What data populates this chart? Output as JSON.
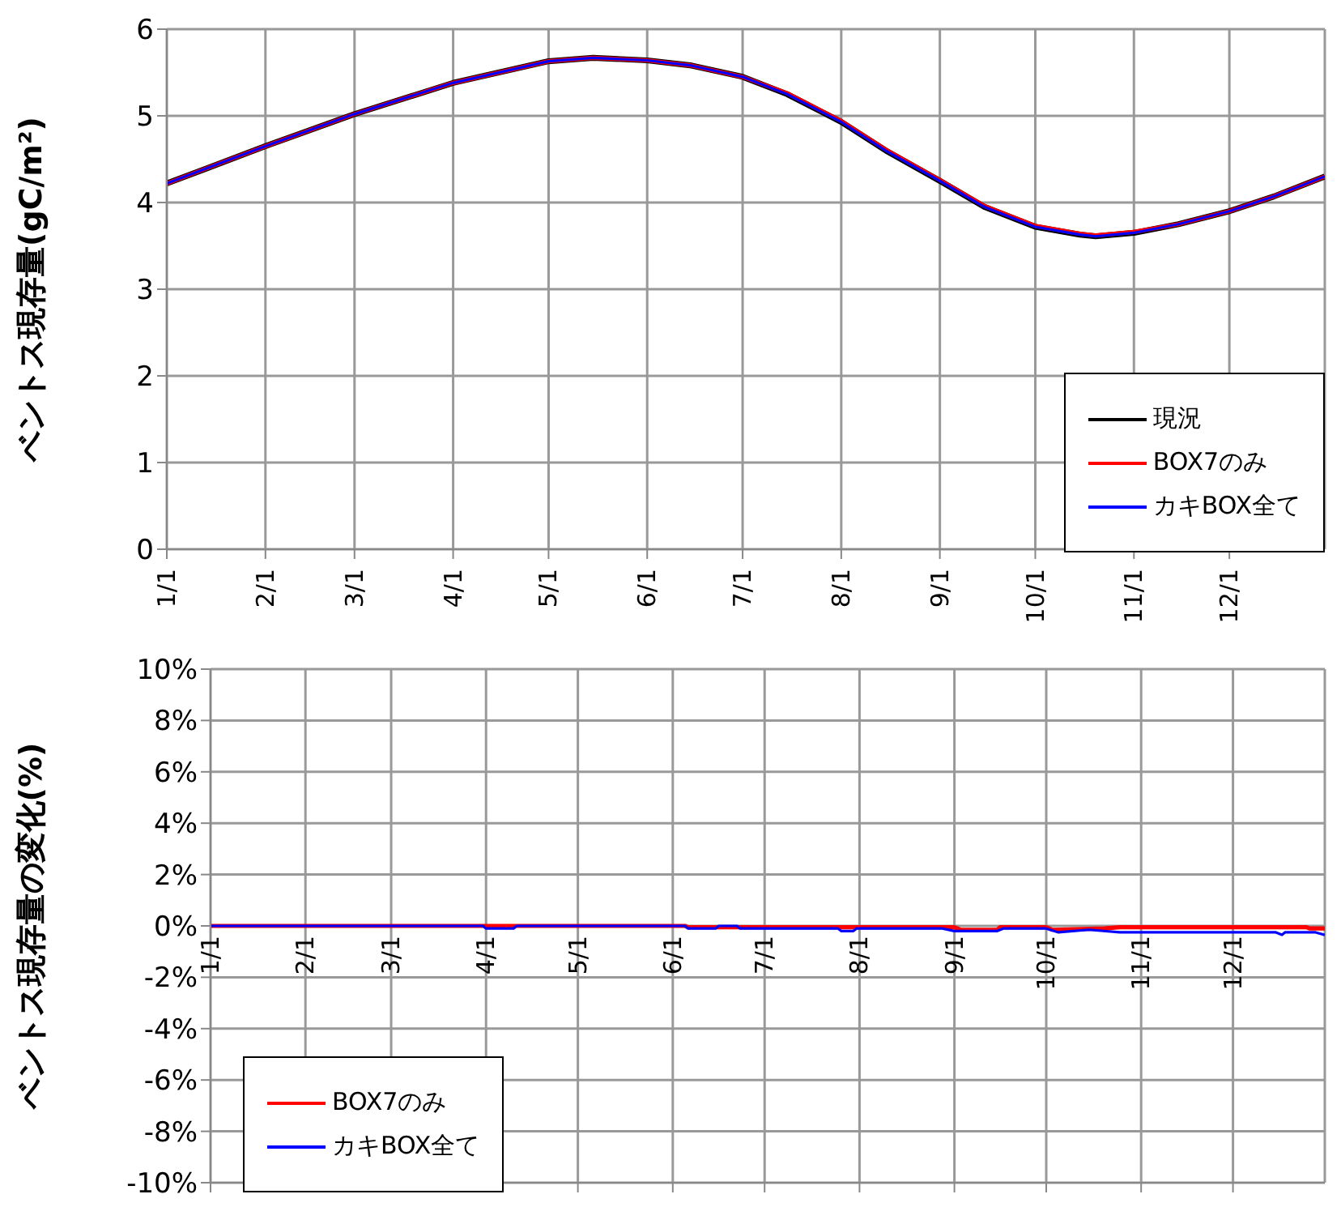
{
  "chart_data": [
    {
      "type": "line",
      "ylabel": "ベントス現存量(gC/m²)",
      "x": [
        "--01-01",
        "--02-01",
        "--03-01",
        "--04-01",
        "--05-01",
        "--05-15",
        "--06-01",
        "--06-15",
        "--07-01",
        "--07-15",
        "--08-01",
        "--08-15",
        "--09-01",
        "--09-15",
        "--10-01",
        "--10-15",
        "--10-20",
        "--11-01",
        "--11-15",
        "--12-01",
        "--12-15",
        "--12-31"
      ],
      "series": [
        {
          "name": "現況",
          "color": "#000000",
          "values": [
            4.22,
            4.65,
            5.02,
            5.38,
            5.63,
            5.67,
            5.64,
            5.58,
            5.45,
            5.25,
            4.93,
            4.6,
            4.25,
            3.95,
            3.72,
            3.63,
            3.61,
            3.65,
            3.75,
            3.9,
            4.07,
            4.3
          ]
        },
        {
          "name": "BOX7のみ",
          "color": "#ff0000",
          "values": [
            4.22,
            4.65,
            5.02,
            5.38,
            5.63,
            5.67,
            5.64,
            5.58,
            5.45,
            5.26,
            4.94,
            4.61,
            4.26,
            3.96,
            3.73,
            3.64,
            3.62,
            3.66,
            3.75,
            3.9,
            4.07,
            4.3
          ]
        },
        {
          "name": "カキBOX全て",
          "color": "#0000ff",
          "values": [
            4.22,
            4.65,
            5.02,
            5.38,
            5.63,
            5.67,
            5.64,
            5.58,
            5.45,
            5.25,
            4.93,
            4.6,
            4.25,
            3.95,
            3.72,
            3.63,
            3.61,
            3.65,
            3.75,
            3.9,
            4.07,
            4.3
          ]
        }
      ],
      "xlim": [
        "--01-01",
        "--12-31"
      ],
      "xticks": [
        {
          "value": "--01-01",
          "label": "1/1"
        },
        {
          "value": "--02-01",
          "label": "2/1"
        },
        {
          "value": "--03-01",
          "label": "3/1"
        },
        {
          "value": "--04-01",
          "label": "4/1"
        },
        {
          "value": "--05-01",
          "label": "5/1"
        },
        {
          "value": "--06-01",
          "label": "6/1"
        },
        {
          "value": "--07-01",
          "label": "7/1"
        },
        {
          "value": "--08-01",
          "label": "8/1"
        },
        {
          "value": "--09-01",
          "label": "9/1"
        },
        {
          "value": "--10-01",
          "label": "10/1"
        },
        {
          "value": "--11-01",
          "label": "11/1"
        },
        {
          "value": "--12-01",
          "label": "12/1"
        }
      ],
      "ylim": [
        0,
        6
      ],
      "yticks": [
        0,
        1,
        2,
        3,
        4,
        5,
        6
      ],
      "grid": true,
      "legend": "bottom right",
      "line_style": "solid",
      "marker": "none"
    },
    {
      "type": "line",
      "ylabel": "ベントス現存量の変化(%)",
      "series": [
        {
          "name": "BOX7のみ",
          "color": "#ff0000",
          "x": [
            "--01-01",
            "--06-05",
            "--06-06",
            "--09-01",
            "--09-03",
            "--09-15",
            "--09-16",
            "--10-01",
            "--10-03",
            "--10-20",
            "--10-25",
            "--12-25",
            "--12-26",
            "--12-31"
          ],
          "values": [
            0,
            0,
            -0.05,
            -0.05,
            -0.15,
            -0.15,
            -0.05,
            -0.05,
            -0.15,
            -0.1,
            -0.05,
            -0.05,
            -0.1,
            -0.1
          ]
        },
        {
          "name": "カキBOX全て",
          "color": "#0000ff",
          "x": [
            "--01-01",
            "--03-31",
            "--04-01",
            "--04-10",
            "--04-11",
            "--06-05",
            "--06-06",
            "--06-15",
            "--06-16",
            "--06-22",
            "--06-23",
            "--07-25",
            "--07-26",
            "--07-30",
            "--07-31",
            "--08-28",
            "--09-01",
            "--09-15",
            "--09-17",
            "--10-01",
            "--10-05",
            "--10-15",
            "--10-25",
            "--12-15",
            "--12-17",
            "--12-18",
            "--12-28",
            "--12-31"
          ],
          "values": [
            0,
            0,
            -0.1,
            -0.1,
            0,
            0,
            -0.1,
            -0.1,
            0,
            0,
            -0.1,
            -0.1,
            -0.2,
            -0.2,
            -0.1,
            -0.1,
            -0.2,
            -0.2,
            -0.1,
            -0.1,
            -0.25,
            -0.15,
            -0.25,
            -0.25,
            -0.35,
            -0.25,
            -0.25,
            -0.35
          ]
        }
      ],
      "xlim": [
        "--01-01",
        "--12-31"
      ],
      "xticks": [
        {
          "value": "--01-01",
          "label": "1/1"
        },
        {
          "value": "--02-01",
          "label": "2/1"
        },
        {
          "value": "--03-01",
          "label": "3/1"
        },
        {
          "value": "--04-01",
          "label": "4/1"
        },
        {
          "value": "--05-01",
          "label": "5/1"
        },
        {
          "value": "--06-01",
          "label": "6/1"
        },
        {
          "value": "--07-01",
          "label": "7/1"
        },
        {
          "value": "--08-01",
          "label": "8/1"
        },
        {
          "value": "--09-01",
          "label": "9/1"
        },
        {
          "value": "--10-01",
          "label": "10/1"
        },
        {
          "value": "--11-01",
          "label": "11/1"
        },
        {
          "value": "--12-01",
          "label": "12/1"
        }
      ],
      "ylim": [
        -10,
        10
      ],
      "yticks": [
        {
          "value": -10,
          "label": "-10%"
        },
        {
          "value": -8,
          "label": "-8%"
        },
        {
          "value": -6,
          "label": "-6%"
        },
        {
          "value": -4,
          "label": "-4%"
        },
        {
          "value": -2,
          "label": "-2%"
        },
        {
          "value": 0,
          "label": "0%"
        },
        {
          "value": 2,
          "label": "2%"
        },
        {
          "value": 4,
          "label": "4%"
        },
        {
          "value": 6,
          "label": "6%"
        },
        {
          "value": 8,
          "label": "8%"
        },
        {
          "value": 10,
          "label": "10%"
        }
      ],
      "grid": true,
      "legend": "bottom left",
      "line_style": "solid",
      "marker": "none"
    }
  ]
}
